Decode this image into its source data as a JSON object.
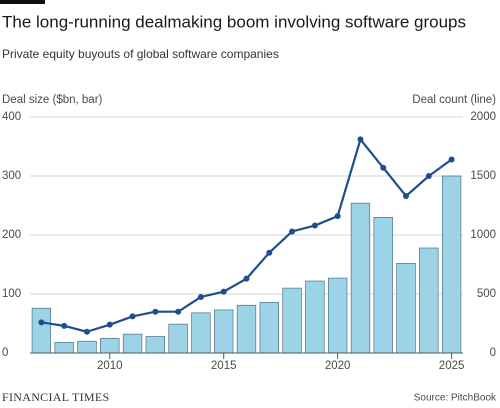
{
  "chart_data": {
    "type": "bar",
    "title": "The long-running dealmaking boom involving software groups",
    "subtitle": "Private equity buyouts of global software companies",
    "y_label": "Deal size ($bn, bar)",
    "y2_label": "Deal count (line)",
    "source": "Source: PitchBook",
    "brand": "FINANCIAL TIMES",
    "x": [
      2007,
      2008,
      2009,
      2010,
      2011,
      2012,
      2013,
      2014,
      2015,
      2016,
      2017,
      2018,
      2019,
      2020,
      2021,
      2022,
      2023,
      2024,
      2025
    ],
    "xlim": [
      2006.5,
      2025.5
    ],
    "xticks": [
      2010,
      2015,
      2020,
      2025
    ],
    "ylim": [
      0,
      400
    ],
    "yticks": [
      0,
      100,
      200,
      300,
      400
    ],
    "y2lim": [
      0,
      2000
    ],
    "y2ticks": [
      0,
      500,
      1000,
      1500,
      2000
    ],
    "grid": true,
    "series": [
      {
        "name": "Deal size ($bn)",
        "type": "bar",
        "color": "#9dd3e6",
        "values": [
          76,
          18,
          20,
          25,
          32,
          28,
          49,
          68,
          73,
          81,
          86,
          110,
          122,
          127,
          254,
          230,
          152,
          178,
          300
        ]
      },
      {
        "name": "Deal count",
        "type": "line",
        "axis": "y2",
        "color": "#1f4e8c",
        "values": [
          260,
          230,
          180,
          240,
          310,
          350,
          350,
          475,
          520,
          630,
          850,
          1030,
          1080,
          1160,
          1810,
          1570,
          1330,
          1500,
          1640
        ]
      }
    ]
  }
}
